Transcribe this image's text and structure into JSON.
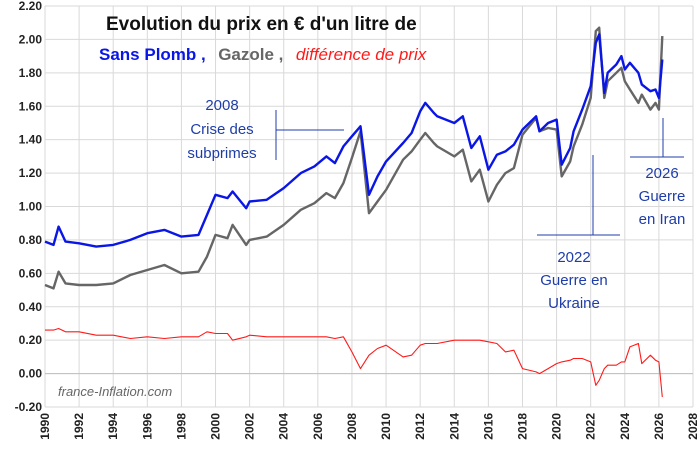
{
  "chart_data": {
    "type": "line",
    "title": "Evolution du prix en € d'un litre de",
    "legend": [
      {
        "label": "Sans Plomb ,",
        "color": "#0a16e6",
        "style": "bold"
      },
      {
        "label": "Gazole ,",
        "color": "#666666",
        "style": "bold"
      },
      {
        "label": "différence de prix",
        "color": "#ff1a1a",
        "style": "italic"
      }
    ],
    "ylim": [
      -0.2,
      2.2
    ],
    "yticks": [
      "-0.20",
      "0.00",
      "0.20",
      "0.40",
      "0.60",
      "0.80",
      "1.00",
      "1.20",
      "1.40",
      "1.60",
      "1.80",
      "2.00",
      "2.20"
    ],
    "ytick_values": [
      -0.2,
      0,
      0.2,
      0.4,
      0.6,
      0.8,
      1.0,
      1.2,
      1.4,
      1.6,
      1.8,
      2.0,
      2.2
    ],
    "xlim": [
      1990,
      2028
    ],
    "xticks": [
      "1990",
      "1992",
      "1994",
      "1996",
      "1998",
      "2000",
      "2002",
      "2004",
      "2006",
      "2008",
      "2010",
      "2012",
      "2014",
      "2016",
      "2018",
      "2020",
      "2022",
      "2024",
      "2026",
      "2028"
    ],
    "xtick_values": [
      1990,
      1992,
      1994,
      1996,
      1998,
      2000,
      2002,
      2004,
      2006,
      2008,
      2010,
      2012,
      2014,
      2016,
      2018,
      2020,
      2022,
      2024,
      2026,
      2028
    ],
    "grid": true,
    "series": [
      {
        "name": "Sans Plomb",
        "color": "#0a16e6",
        "x": [
          1990.0,
          1990.5,
          1990.8,
          1991.2,
          1992.0,
          1993.0,
          1994.0,
          1995.0,
          1996.0,
          1997.0,
          1998.0,
          1999.0,
          1999.5,
          2000.0,
          2000.7,
          2001.0,
          2001.8,
          2002.0,
          2003.0,
          2004.0,
          2005.0,
          2005.8,
          2006.5,
          2007.0,
          2007.5,
          2008.0,
          2008.5,
          2009.0,
          2009.5,
          2010.0,
          2011.0,
          2011.5,
          2012.0,
          2012.3,
          2012.8,
          2013.0,
          2014.0,
          2014.5,
          2015.0,
          2015.5,
          2016.0,
          2016.5,
          2017.0,
          2017.5,
          2018.0,
          2018.8,
          2019.0,
          2019.5,
          2020.0,
          2020.3,
          2020.8,
          2021.0,
          2021.5,
          2022.0,
          2022.3,
          2022.5,
          2022.8,
          2023.0,
          2023.5,
          2023.8,
          2024.0,
          2024.3,
          2024.8,
          2025.0,
          2025.5,
          2025.8,
          2026.0,
          2026.2
        ],
        "values": [
          0.79,
          0.77,
          0.88,
          0.79,
          0.78,
          0.76,
          0.77,
          0.8,
          0.84,
          0.86,
          0.82,
          0.83,
          0.95,
          1.07,
          1.05,
          1.09,
          0.99,
          1.03,
          1.04,
          1.11,
          1.2,
          1.24,
          1.3,
          1.26,
          1.36,
          1.42,
          1.48,
          1.07,
          1.18,
          1.27,
          1.38,
          1.44,
          1.57,
          1.62,
          1.56,
          1.54,
          1.5,
          1.54,
          1.35,
          1.42,
          1.22,
          1.31,
          1.33,
          1.37,
          1.46,
          1.54,
          1.45,
          1.5,
          1.52,
          1.25,
          1.35,
          1.45,
          1.58,
          1.72,
          1.98,
          2.03,
          1.68,
          1.8,
          1.85,
          1.9,
          1.82,
          1.86,
          1.8,
          1.73,
          1.69,
          1.7,
          1.65,
          1.88
        ]
      },
      {
        "name": "Gazole",
        "color": "#666666",
        "x": [
          1990.0,
          1990.5,
          1990.8,
          1991.2,
          1992.0,
          1993.0,
          1994.0,
          1995.0,
          1996.0,
          1997.0,
          1998.0,
          1999.0,
          1999.5,
          2000.0,
          2000.7,
          2001.0,
          2001.8,
          2002.0,
          2003.0,
          2004.0,
          2005.0,
          2005.8,
          2006.5,
          2007.0,
          2007.5,
          2008.0,
          2008.5,
          2009.0,
          2009.5,
          2010.0,
          2011.0,
          2011.5,
          2012.0,
          2012.3,
          2012.8,
          2013.0,
          2014.0,
          2014.5,
          2015.0,
          2015.5,
          2016.0,
          2016.5,
          2017.0,
          2017.5,
          2018.0,
          2018.8,
          2019.0,
          2019.5,
          2020.0,
          2020.3,
          2020.8,
          2021.0,
          2021.5,
          2022.0,
          2022.3,
          2022.5,
          2022.8,
          2023.0,
          2023.5,
          2023.8,
          2024.0,
          2024.3,
          2024.8,
          2025.0,
          2025.5,
          2025.8,
          2026.0,
          2026.2
        ],
        "values": [
          0.53,
          0.51,
          0.61,
          0.54,
          0.53,
          0.53,
          0.54,
          0.59,
          0.62,
          0.65,
          0.6,
          0.61,
          0.7,
          0.83,
          0.81,
          0.89,
          0.77,
          0.8,
          0.82,
          0.89,
          0.98,
          1.02,
          1.08,
          1.05,
          1.14,
          1.29,
          1.45,
          0.96,
          1.03,
          1.1,
          1.28,
          1.33,
          1.4,
          1.44,
          1.38,
          1.36,
          1.3,
          1.34,
          1.15,
          1.22,
          1.03,
          1.13,
          1.2,
          1.23,
          1.43,
          1.53,
          1.45,
          1.47,
          1.46,
          1.18,
          1.27,
          1.36,
          1.49,
          1.65,
          2.05,
          2.07,
          1.65,
          1.75,
          1.8,
          1.83,
          1.75,
          1.7,
          1.62,
          1.67,
          1.58,
          1.62,
          1.58,
          2.02
        ]
      },
      {
        "name": "différence de prix",
        "color": "#ff1a1a",
        "x": [
          1990.0,
          1990.5,
          1990.8,
          1991.2,
          1992.0,
          1993.0,
          1994.0,
          1995.0,
          1996.0,
          1997.0,
          1998.0,
          1999.0,
          1999.5,
          2000.0,
          2000.7,
          2001.0,
          2001.8,
          2002.0,
          2003.0,
          2004.0,
          2005.0,
          2005.8,
          2006.5,
          2007.0,
          2007.5,
          2008.0,
          2008.5,
          2009.0,
          2009.5,
          2010.0,
          2011.0,
          2011.5,
          2012.0,
          2012.3,
          2012.8,
          2013.0,
          2014.0,
          2014.5,
          2015.0,
          2015.5,
          2016.0,
          2016.5,
          2017.0,
          2017.5,
          2018.0,
          2018.8,
          2019.0,
          2019.5,
          2020.0,
          2020.3,
          2020.8,
          2021.0,
          2021.5,
          2022.0,
          2022.3,
          2022.5,
          2022.8,
          2023.0,
          2023.5,
          2023.8,
          2024.0,
          2024.3,
          2024.8,
          2025.0,
          2025.5,
          2025.8,
          2026.0,
          2026.2
        ],
        "values": [
          0.26,
          0.26,
          0.27,
          0.25,
          0.25,
          0.23,
          0.23,
          0.21,
          0.22,
          0.21,
          0.22,
          0.22,
          0.25,
          0.24,
          0.24,
          0.2,
          0.22,
          0.23,
          0.22,
          0.22,
          0.22,
          0.22,
          0.22,
          0.21,
          0.22,
          0.13,
          0.03,
          0.11,
          0.15,
          0.17,
          0.1,
          0.11,
          0.17,
          0.18,
          0.18,
          0.18,
          0.2,
          0.2,
          0.2,
          0.2,
          0.19,
          0.18,
          0.13,
          0.14,
          0.03,
          0.01,
          0.0,
          0.03,
          0.06,
          0.07,
          0.08,
          0.09,
          0.09,
          0.07,
          -0.07,
          -0.04,
          0.03,
          0.05,
          0.05,
          0.07,
          0.07,
          0.16,
          0.18,
          0.06,
          0.11,
          0.08,
          0.07,
          -0.14
        ]
      }
    ],
    "annotations": [
      {
        "text": [
          "2008",
          "Crise des",
          "subprimes"
        ],
        "x_event": 2008
      },
      {
        "text": [
          "2022",
          "Guerre en",
          "Ukraine"
        ],
        "x_event": 2022
      },
      {
        "text": [
          "2026",
          "Guerre",
          "en Iran"
        ],
        "x_event": 2026
      }
    ],
    "credit": "france-Inflation.com"
  }
}
